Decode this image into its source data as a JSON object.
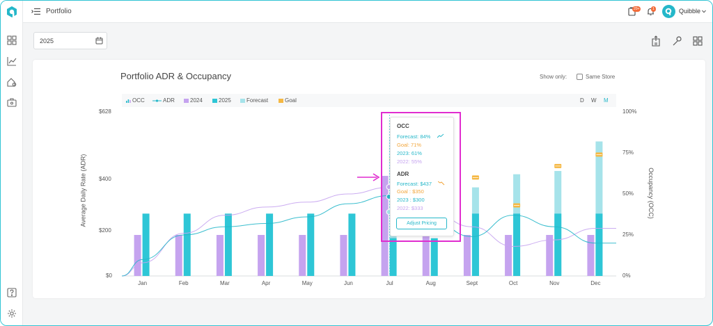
{
  "topbar": {
    "breadcrumb": "Portfolio",
    "user_name": "Quibble",
    "badge_1": "20+",
    "badge_2": "1"
  },
  "filters": {
    "year": "2025"
  },
  "card": {
    "title": "Portfolio ADR & Occupancy",
    "show_only_label": "Show only:",
    "same_store_label": "Same Store",
    "same_store_checked": false
  },
  "legend": {
    "occ": "OCC",
    "adr": "ADR",
    "y2024": "2024",
    "y2025": "2025",
    "forecast": "Forecast",
    "goal": "Goal"
  },
  "granularity": {
    "d": "D",
    "w": "W",
    "m": "M",
    "active": "M"
  },
  "tooltip": {
    "occ_header": "OCC",
    "occ_forecast": "Forecast: 84%",
    "occ_goal": "Goal: 71%",
    "occ_2023": "2023: 61%",
    "occ_2022": "2022: 55%",
    "adr_header": "ADR",
    "adr_forecast": "Forecast: $437",
    "adr_goal": "Goal : $350",
    "adr_2023": "2023 : $300",
    "adr_2022": "2022: $333",
    "button": "Adjust Pricing"
  },
  "colors": {
    "accent": "#25b7c9",
    "c2024": "#c5a3ef",
    "c2025": "#2ec6d6",
    "forecast": "#a6e3ea",
    "goal": "#f5b843",
    "highlight": "#e02ccf"
  },
  "chart_data": {
    "type": "bar",
    "categories": [
      "Jan",
      "Feb",
      "Mar",
      "Apr",
      "May",
      "Jun",
      "Jul",
      "Aug",
      "Sept",
      "Oct",
      "Nov",
      "Dec"
    ],
    "y_left_label": "Average Daily Rate (ADR)",
    "y_left_ticks": [
      "$628",
      "$400",
      "$200",
      "$0"
    ],
    "y_right_label": "Occupancy (OCC)",
    "y_right_ticks": [
      "100%",
      "75%",
      "50%",
      "25%",
      "0%"
    ],
    "ylim_occ": [
      0,
      100
    ],
    "series": [
      {
        "name": "2024",
        "axis": "occ",
        "values": [
          25,
          25,
          25,
          25,
          25,
          25,
          61,
          25,
          25,
          25,
          25,
          25
        ]
      },
      {
        "name": "2025",
        "axis": "occ",
        "values": [
          38,
          38,
          38,
          38,
          38,
          38,
          23,
          23,
          38,
          38,
          38,
          38
        ]
      },
      {
        "name": "Forecast",
        "axis": "occ",
        "values": [
          null,
          null,
          null,
          null,
          null,
          null,
          84,
          null,
          54,
          62,
          64,
          82
        ]
      },
      {
        "name": "Goal",
        "axis": "occ",
        "values": [
          null,
          null,
          null,
          null,
          null,
          null,
          71,
          null,
          60,
          43,
          67,
          74
        ]
      },
      {
        "name": "ADR 2022",
        "axis": "occ",
        "values": [
          8,
          26,
          37,
          42,
          45,
          50,
          54,
          39,
          30,
          18,
          22,
          29
        ]
      },
      {
        "name": "ADR 2025",
        "axis": "occ",
        "values": [
          10,
          25,
          30,
          32,
          36,
          44,
          49,
          34,
          24,
          37,
          30,
          20
        ]
      }
    ]
  }
}
